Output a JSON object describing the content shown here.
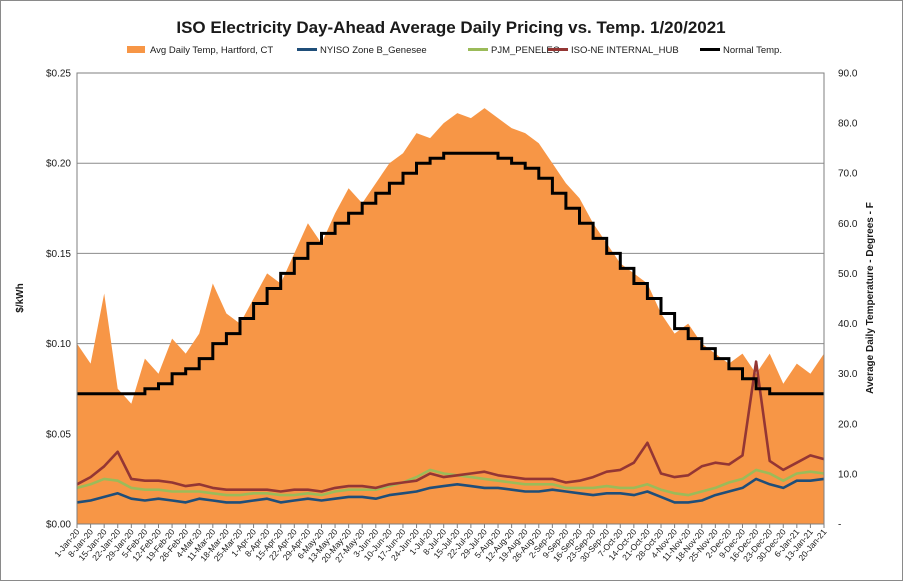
{
  "chart_data": {
    "type": "line",
    "title": "ISO Electricity Day-Ahead Average Daily Pricing vs. Temp. 1/20/2021",
    "ylabel": "$/kWh",
    "y2label": "Average Daily Temperature - Degrees - F",
    "ylim": [
      0,
      0.25
    ],
    "y2lim": [
      0,
      90
    ],
    "yticks": [
      "$0.00",
      "$0.05",
      "$0.10",
      "$0.15",
      "$0.20",
      "$0.25"
    ],
    "y2ticks": [
      "-",
      "10.0",
      "20.0",
      "30.0",
      "40.0",
      "50.0",
      "60.0",
      "70.0",
      "80.0",
      "90.0"
    ],
    "grid": true,
    "legend_position": "top",
    "x_categories": [
      "1-Jan-20",
      "8-Jan-20",
      "15-Jan-20",
      "22-Jan-20",
      "29-Jan-20",
      "5-Feb-20",
      "12-Feb-20",
      "19-Feb-20",
      "26-Feb-20",
      "4-Mar-20",
      "11-Mar-20",
      "18-Mar-20",
      "25-Mar-20",
      "1-Apr-20",
      "8-Apr-20",
      "15-Apr-20",
      "22-Apr-20",
      "29-Apr-20",
      "6-May-20",
      "13-May-20",
      "20-May-20",
      "27-May-20",
      "3-Jun-20",
      "10-Jun-20",
      "17-Jun-20",
      "24-Jun-20",
      "1-Jul-20",
      "8-Jul-20",
      "15-Jul-20",
      "22-Jul-20",
      "29-Jul-20",
      "5-Aug-20",
      "12-Aug-20",
      "19-Aug-20",
      "26-Aug-20",
      "2-Sep-20",
      "9-Sep-20",
      "16-Sep-20",
      "23-Sep-20",
      "30-Sep-20",
      "7-Oct-20",
      "14-Oct-20",
      "21-Oct-20",
      "28-Oct-20",
      "4-Nov-20",
      "11-Nov-20",
      "18-Nov-20",
      "25-Nov-20",
      "2-Dec-20",
      "9-Dec-20",
      "16-Dec-20",
      "23-Dec-20",
      "30-Dec-20",
      "6-Jan-21",
      "13-Jan-21",
      "20-Jan-21"
    ],
    "series": [
      {
        "name": "Avg Daily Temp, Hartford, CT",
        "kind": "area",
        "axis": "right",
        "color": "#f79646",
        "values": [
          36,
          32,
          46,
          27,
          24,
          33,
          30,
          37,
          34,
          38,
          48,
          42,
          40,
          45,
          50,
          48,
          54,
          60,
          56,
          62,
          67,
          64,
          68,
          72,
          74,
          78,
          77,
          80,
          82,
          81,
          83,
          81,
          79,
          78,
          76,
          72,
          68,
          65,
          60,
          56,
          52,
          50,
          48,
          42,
          38,
          40,
          36,
          34,
          32,
          34,
          30,
          34,
          28,
          32,
          30,
          34
        ]
      },
      {
        "name": "NYISO Zone B_Genesee",
        "kind": "line",
        "axis": "left",
        "color": "#1f4e79",
        "values": [
          0.012,
          0.013,
          0.015,
          0.017,
          0.014,
          0.013,
          0.014,
          0.013,
          0.012,
          0.014,
          0.013,
          0.012,
          0.012,
          0.013,
          0.014,
          0.012,
          0.013,
          0.014,
          0.013,
          0.014,
          0.015,
          0.015,
          0.014,
          0.016,
          0.017,
          0.018,
          0.02,
          0.021,
          0.022,
          0.021,
          0.02,
          0.02,
          0.019,
          0.018,
          0.018,
          0.019,
          0.018,
          0.017,
          0.016,
          0.017,
          0.017,
          0.016,
          0.018,
          0.015,
          0.012,
          0.012,
          0.013,
          0.016,
          0.018,
          0.02,
          0.025,
          0.022,
          0.02,
          0.024,
          0.024,
          0.025
        ]
      },
      {
        "name": "PJM_PENELEC",
        "kind": "line",
        "axis": "left",
        "color": "#9bbb59",
        "values": [
          0.02,
          0.022,
          0.025,
          0.024,
          0.02,
          0.019,
          0.019,
          0.018,
          0.018,
          0.018,
          0.017,
          0.016,
          0.016,
          0.017,
          0.017,
          0.016,
          0.016,
          0.017,
          0.016,
          0.018,
          0.019,
          0.019,
          0.019,
          0.021,
          0.023,
          0.026,
          0.03,
          0.028,
          0.027,
          0.026,
          0.025,
          0.024,
          0.023,
          0.022,
          0.022,
          0.022,
          0.02,
          0.02,
          0.02,
          0.021,
          0.02,
          0.02,
          0.022,
          0.019,
          0.017,
          0.016,
          0.018,
          0.02,
          0.023,
          0.025,
          0.03,
          0.028,
          0.024,
          0.028,
          0.029,
          0.028
        ]
      },
      {
        "name": "ISO-NE INTERNAL_HUB",
        "kind": "line",
        "axis": "left",
        "color": "#943634",
        "values": [
          0.022,
          0.026,
          0.032,
          0.04,
          0.025,
          0.024,
          0.024,
          0.023,
          0.021,
          0.022,
          0.02,
          0.019,
          0.019,
          0.019,
          0.019,
          0.018,
          0.019,
          0.019,
          0.018,
          0.02,
          0.021,
          0.021,
          0.02,
          0.022,
          0.023,
          0.024,
          0.028,
          0.026,
          0.027,
          0.028,
          0.029,
          0.027,
          0.026,
          0.025,
          0.025,
          0.025,
          0.023,
          0.024,
          0.026,
          0.029,
          0.03,
          0.034,
          0.045,
          0.028,
          0.026,
          0.027,
          0.032,
          0.034,
          0.033,
          0.038,
          0.09,
          0.035,
          0.03,
          0.034,
          0.038,
          0.036
        ]
      },
      {
        "name": "Normal Temp.",
        "kind": "line",
        "axis": "right",
        "color": "#000000",
        "values": [
          26,
          26,
          26,
          26,
          26,
          27,
          28,
          30,
          31,
          33,
          36,
          38,
          41,
          44,
          47,
          50,
          53,
          56,
          58,
          60,
          62,
          64,
          66,
          68,
          70,
          72,
          73,
          74,
          74,
          74,
          74,
          73,
          72,
          71,
          69,
          66,
          63,
          60,
          57,
          54,
          51,
          48,
          45,
          42,
          39,
          37,
          35,
          33,
          31,
          29,
          27,
          26,
          26,
          26,
          26,
          26
        ]
      }
    ]
  }
}
